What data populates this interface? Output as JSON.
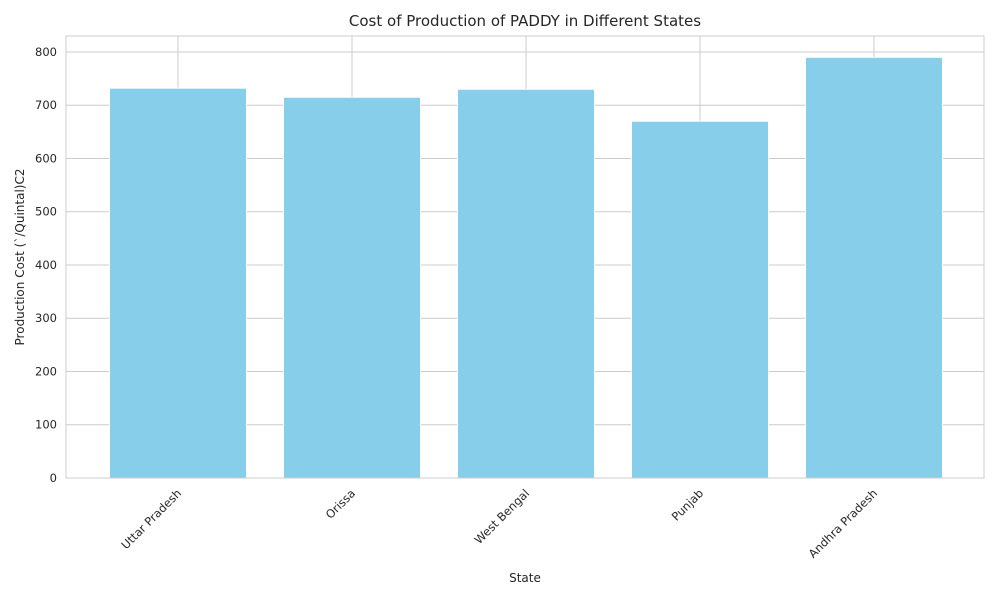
{
  "chart_data": {
    "type": "bar",
    "title": "Cost of Production of PADDY in Different States",
    "xlabel": "State",
    "ylabel": "Production Cost (`/Quintal)C2",
    "categories": [
      "Uttar Pradesh",
      "Orissa",
      "West Bengal",
      "Punjab",
      "Andhra Pradesh"
    ],
    "values": [
      732,
      715,
      730,
      670,
      790
    ],
    "ylim": [
      0,
      830
    ],
    "yticks": [
      0,
      100,
      200,
      300,
      400,
      500,
      600,
      700,
      800
    ],
    "grid": true,
    "bar_color": "#87CEEB"
  }
}
